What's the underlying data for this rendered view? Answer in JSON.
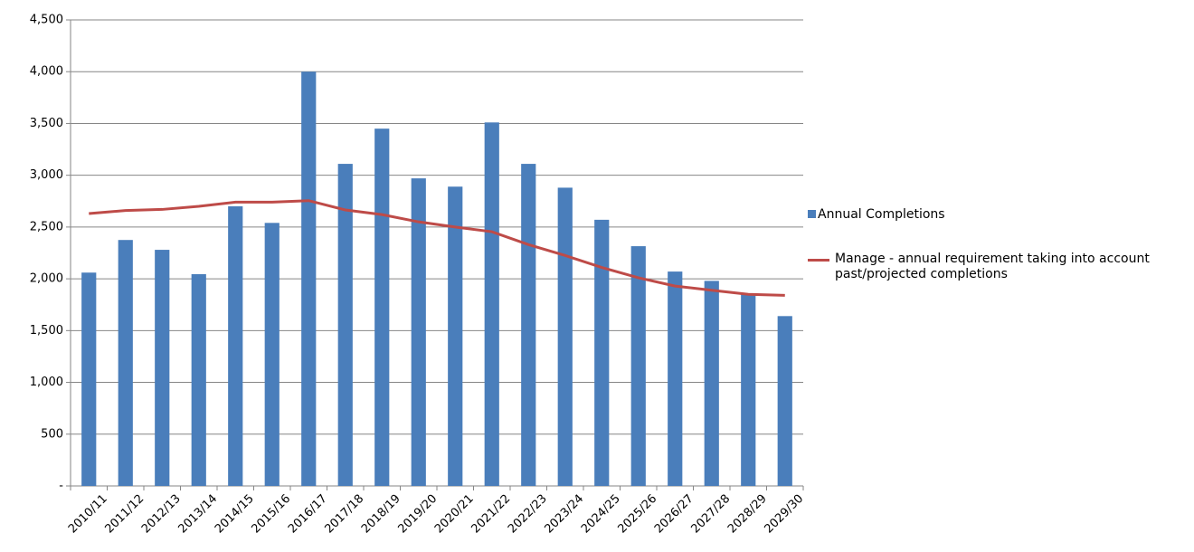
{
  "chart_data": {
    "type": "bar-line",
    "categories": [
      "2010/11",
      "2011/12",
      "2012/13",
      "2013/14",
      "2014/15",
      "2015/16",
      "2016/17",
      "2017/18",
      "2018/19",
      "2019/20",
      "2020/21",
      "2021/22",
      "2022/23",
      "2023/24",
      "2024/25",
      "2025/26",
      "2026/27",
      "2027/28",
      "2028/29",
      "2029/30"
    ],
    "series": [
      {
        "name": "Annual Completions",
        "type": "bar",
        "color": "#4a7ebb",
        "values": [
          2060,
          2375,
          2280,
          2045,
          2700,
          2540,
          4000,
          3110,
          3450,
          2970,
          2890,
          3510,
          3110,
          2880,
          2570,
          2315,
          2070,
          1980,
          1860,
          1640
        ]
      },
      {
        "name": "Manage - annual requirement taking into account past/projected completions",
        "type": "line",
        "color": "#be4b48",
        "values": [
          2630,
          2660,
          2670,
          2700,
          2740,
          2740,
          2755,
          2665,
          2620,
          2550,
          2500,
          2455,
          2330,
          2225,
          2110,
          2010,
          1930,
          1890,
          1850,
          1840
        ]
      }
    ],
    "ylim": [
      0,
      4500
    ],
    "yticks": [
      {
        "value": 0,
        "label": "-"
      },
      500,
      {
        "value": 1000,
        "label": "1,000"
      },
      {
        "value": 1500,
        "label": "1,500"
      },
      {
        "value": 2000,
        "label": "2,000"
      },
      {
        "value": 2500,
        "label": "2,500"
      },
      {
        "value": 3000,
        "label": "3,000"
      },
      {
        "value": 3500,
        "label": "3,500"
      },
      {
        "value": 4000,
        "label": "4,000"
      },
      {
        "value": 4500,
        "label": "4,500"
      }
    ],
    "grid": true,
    "legend": "right"
  }
}
